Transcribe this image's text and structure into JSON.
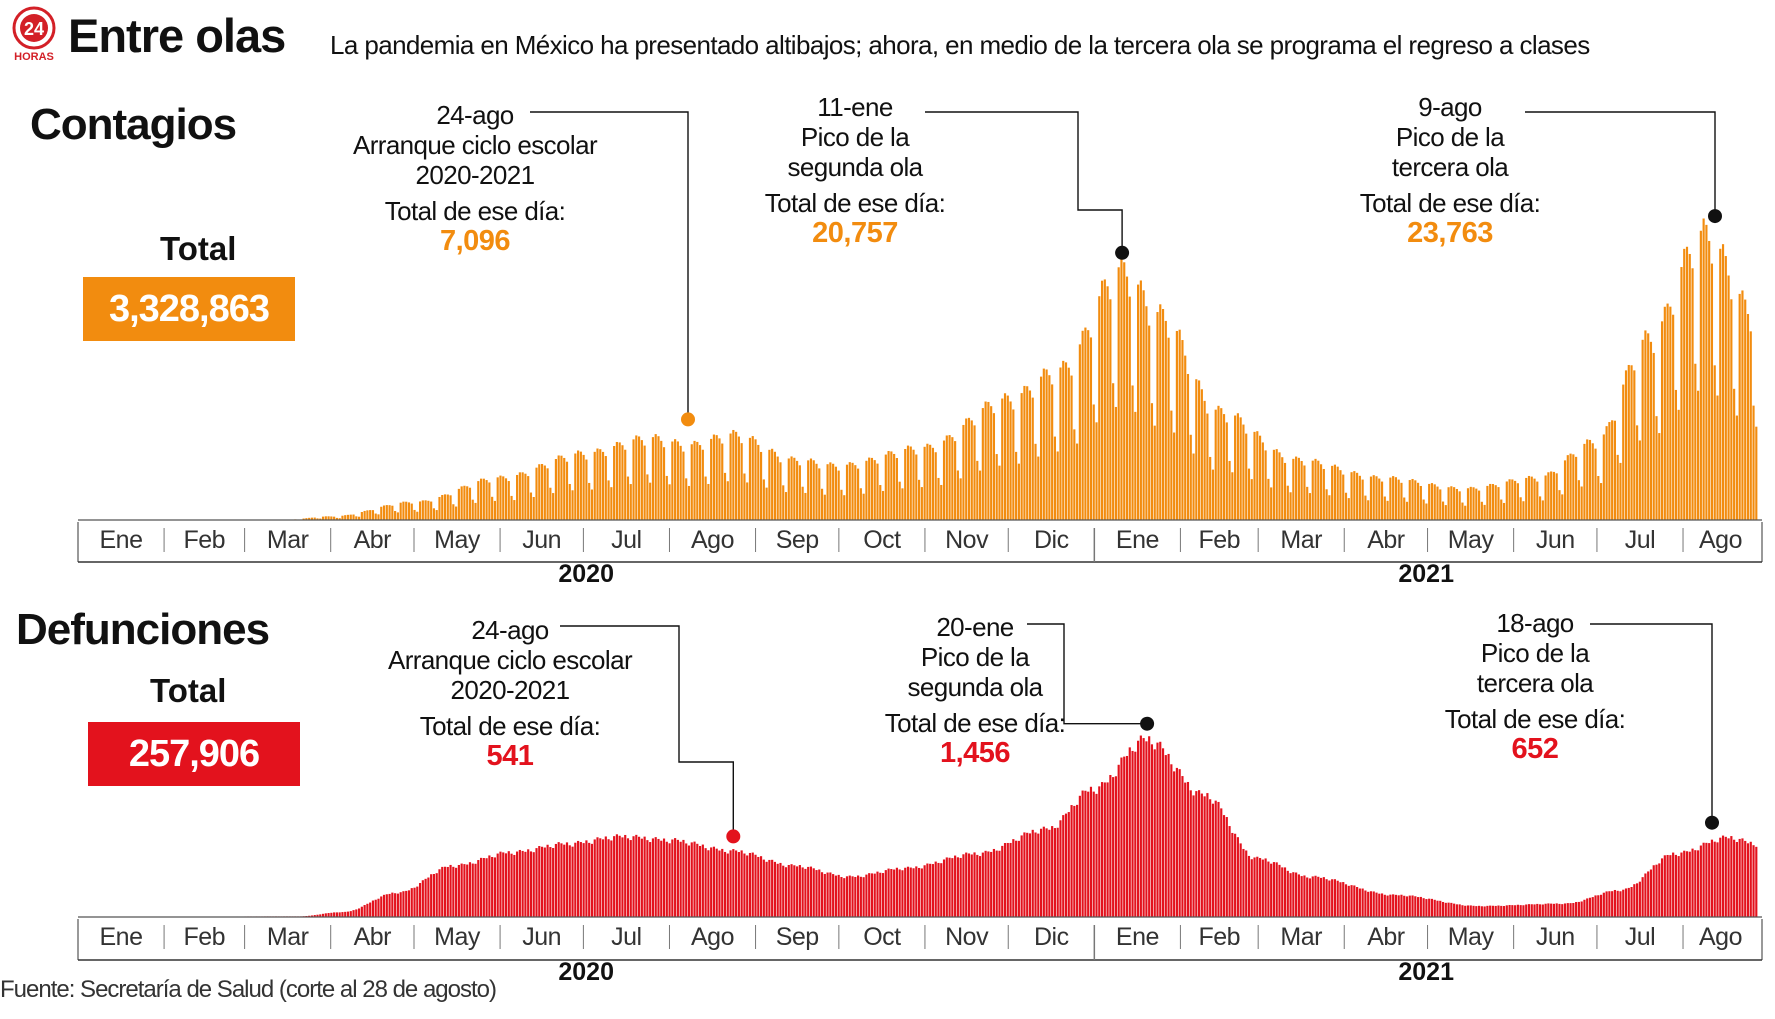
{
  "title": "Entre olas",
  "subtitle": "La pandemia en México ha presentado altibajos; ahora, en medio de la tercera ola se programa el regreso a clases",
  "logo": {
    "number": "24",
    "word": "HORAS",
    "icon": "24-horas-logo"
  },
  "colors": {
    "contagios": "#f28c0f",
    "defunciones": "#e3121d",
    "contagios_box": "#f28c0f",
    "defunciones_box": "#e3121d"
  },
  "source": "Fuente: Secretaría de Salud (corte al 28 de agosto)",
  "contagios": {
    "heading": "Contagios",
    "total_label": "Total",
    "total_value": "3,328,863",
    "annotations": [
      {
        "date": "24-ago",
        "lines": [
          "Arranque ciclo escolar",
          "2020-2021"
        ],
        "label": "Total de ese día:",
        "value": "7,096"
      },
      {
        "date": "11-ene",
        "lines": [
          "Pico de la",
          "segunda ola"
        ],
        "label": "Total de ese día:",
        "value": "20,757"
      },
      {
        "date": "9-ago",
        "lines": [
          "Pico de la",
          "tercera ola"
        ],
        "label": "Total de ese día:",
        "value": "23,763"
      }
    ]
  },
  "defunciones": {
    "heading": "Defunciones",
    "total_label": "Total",
    "total_value": "257,906",
    "annotations": [
      {
        "date": "24-ago",
        "lines": [
          "Arranque ciclo escolar",
          "2020-2021"
        ],
        "label": "Total de ese día:",
        "value": "541"
      },
      {
        "date": "20-ene",
        "lines": [
          "Pico de la",
          "segunda ola"
        ],
        "label": "Total de ese día:",
        "value": "1,456"
      },
      {
        "date": "18-ago",
        "lines": [
          "Pico de la",
          "tercera ola"
        ],
        "label": "Total de ese día:",
        "value": "652"
      }
    ]
  },
  "axis": {
    "months": [
      "Ene",
      "Feb",
      "Mar",
      "Abr",
      "May",
      "Jun",
      "Jul",
      "Ago",
      "Sep",
      "Oct",
      "Nov",
      "Dic",
      "Ene",
      "Feb",
      "Mar",
      "Abr",
      "May",
      "Jun",
      "Jul",
      "Ago"
    ],
    "years": [
      "2020",
      "2021"
    ]
  },
  "chart_data": [
    {
      "type": "bar",
      "name": "Contagios diarios",
      "x_range": [
        "2020-01-01",
        "2021-08-28"
      ],
      "ylim": [
        0,
        25000
      ],
      "grid": false,
      "series_keypoints": [
        {
          "x": "2020-01-01",
          "y": 0
        },
        {
          "x": "2020-03-15",
          "y": 20
        },
        {
          "x": "2020-04-01",
          "y": 300
        },
        {
          "x": "2020-05-01",
          "y": 1500
        },
        {
          "x": "2020-06-01",
          "y": 3500
        },
        {
          "x": "2020-07-01",
          "y": 5500
        },
        {
          "x": "2020-07-25",
          "y": 6800
        },
        {
          "x": "2020-08-08",
          "y": 6200
        },
        {
          "x": "2020-08-24",
          "y": 7096
        },
        {
          "x": "2020-09-15",
          "y": 5000
        },
        {
          "x": "2020-10-01",
          "y": 4500
        },
        {
          "x": "2020-11-01",
          "y": 6000
        },
        {
          "x": "2020-12-01",
          "y": 10000
        },
        {
          "x": "2020-12-20",
          "y": 12500
        },
        {
          "x": "2021-01-11",
          "y": 20757
        },
        {
          "x": "2021-01-25",
          "y": 17000
        },
        {
          "x": "2021-02-15",
          "y": 9000
        },
        {
          "x": "2021-03-15",
          "y": 5000
        },
        {
          "x": "2021-04-15",
          "y": 3500
        },
        {
          "x": "2021-05-15",
          "y": 2600
        },
        {
          "x": "2021-06-10",
          "y": 3500
        },
        {
          "x": "2021-07-01",
          "y": 6500
        },
        {
          "x": "2021-07-20",
          "y": 15000
        },
        {
          "x": "2021-08-09",
          "y": 23763
        },
        {
          "x": "2021-08-28",
          "y": 17000
        }
      ],
      "weekly_pattern": [
        1.0,
        1.04,
        1.02,
        0.97,
        0.9,
        0.55,
        0.45
      ],
      "highlights": [
        {
          "x": "2020-08-24",
          "y": 7096
        },
        {
          "x": "2021-01-11",
          "y": 20757
        },
        {
          "x": "2021-08-09",
          "y": 23763
        }
      ]
    },
    {
      "type": "bar",
      "name": "Defunciones diarias",
      "x_range": [
        "2020-01-01",
        "2021-08-28"
      ],
      "ylim": [
        0,
        1600
      ],
      "grid": false,
      "series_keypoints": [
        {
          "x": "2020-01-01",
          "y": 0
        },
        {
          "x": "2020-03-20",
          "y": 5
        },
        {
          "x": "2020-04-05",
          "y": 40
        },
        {
          "x": "2020-04-25",
          "y": 200
        },
        {
          "x": "2020-05-15",
          "y": 420
        },
        {
          "x": "2020-06-05",
          "y": 530
        },
        {
          "x": "2020-06-25",
          "y": 600
        },
        {
          "x": "2020-07-15",
          "y": 660
        },
        {
          "x": "2020-08-01",
          "y": 630
        },
        {
          "x": "2020-08-24",
          "y": 541
        },
        {
          "x": "2020-09-15",
          "y": 420
        },
        {
          "x": "2020-10-05",
          "y": 330
        },
        {
          "x": "2020-10-25",
          "y": 400
        },
        {
          "x": "2020-11-20",
          "y": 520
        },
        {
          "x": "2020-12-15",
          "y": 720
        },
        {
          "x": "2021-01-01",
          "y": 1050
        },
        {
          "x": "2021-01-20",
          "y": 1456
        },
        {
          "x": "2021-02-10",
          "y": 1000
        },
        {
          "x": "2021-03-01",
          "y": 480
        },
        {
          "x": "2021-03-20",
          "y": 330
        },
        {
          "x": "2021-04-20",
          "y": 180
        },
        {
          "x": "2021-05-20",
          "y": 90
        },
        {
          "x": "2021-06-20",
          "y": 110
        },
        {
          "x": "2021-07-10",
          "y": 220
        },
        {
          "x": "2021-07-30",
          "y": 520
        },
        {
          "x": "2021-08-18",
          "y": 652
        },
        {
          "x": "2021-08-28",
          "y": 600
        }
      ],
      "weekly_pattern": [
        1.0,
        1.02,
        1.0,
        0.98,
        1.01,
        0.97,
        0.95
      ],
      "highlights": [
        {
          "x": "2020-08-24",
          "y": 541
        },
        {
          "x": "2021-01-20",
          "y": 1456
        },
        {
          "x": "2021-08-18",
          "y": 652
        }
      ]
    }
  ]
}
